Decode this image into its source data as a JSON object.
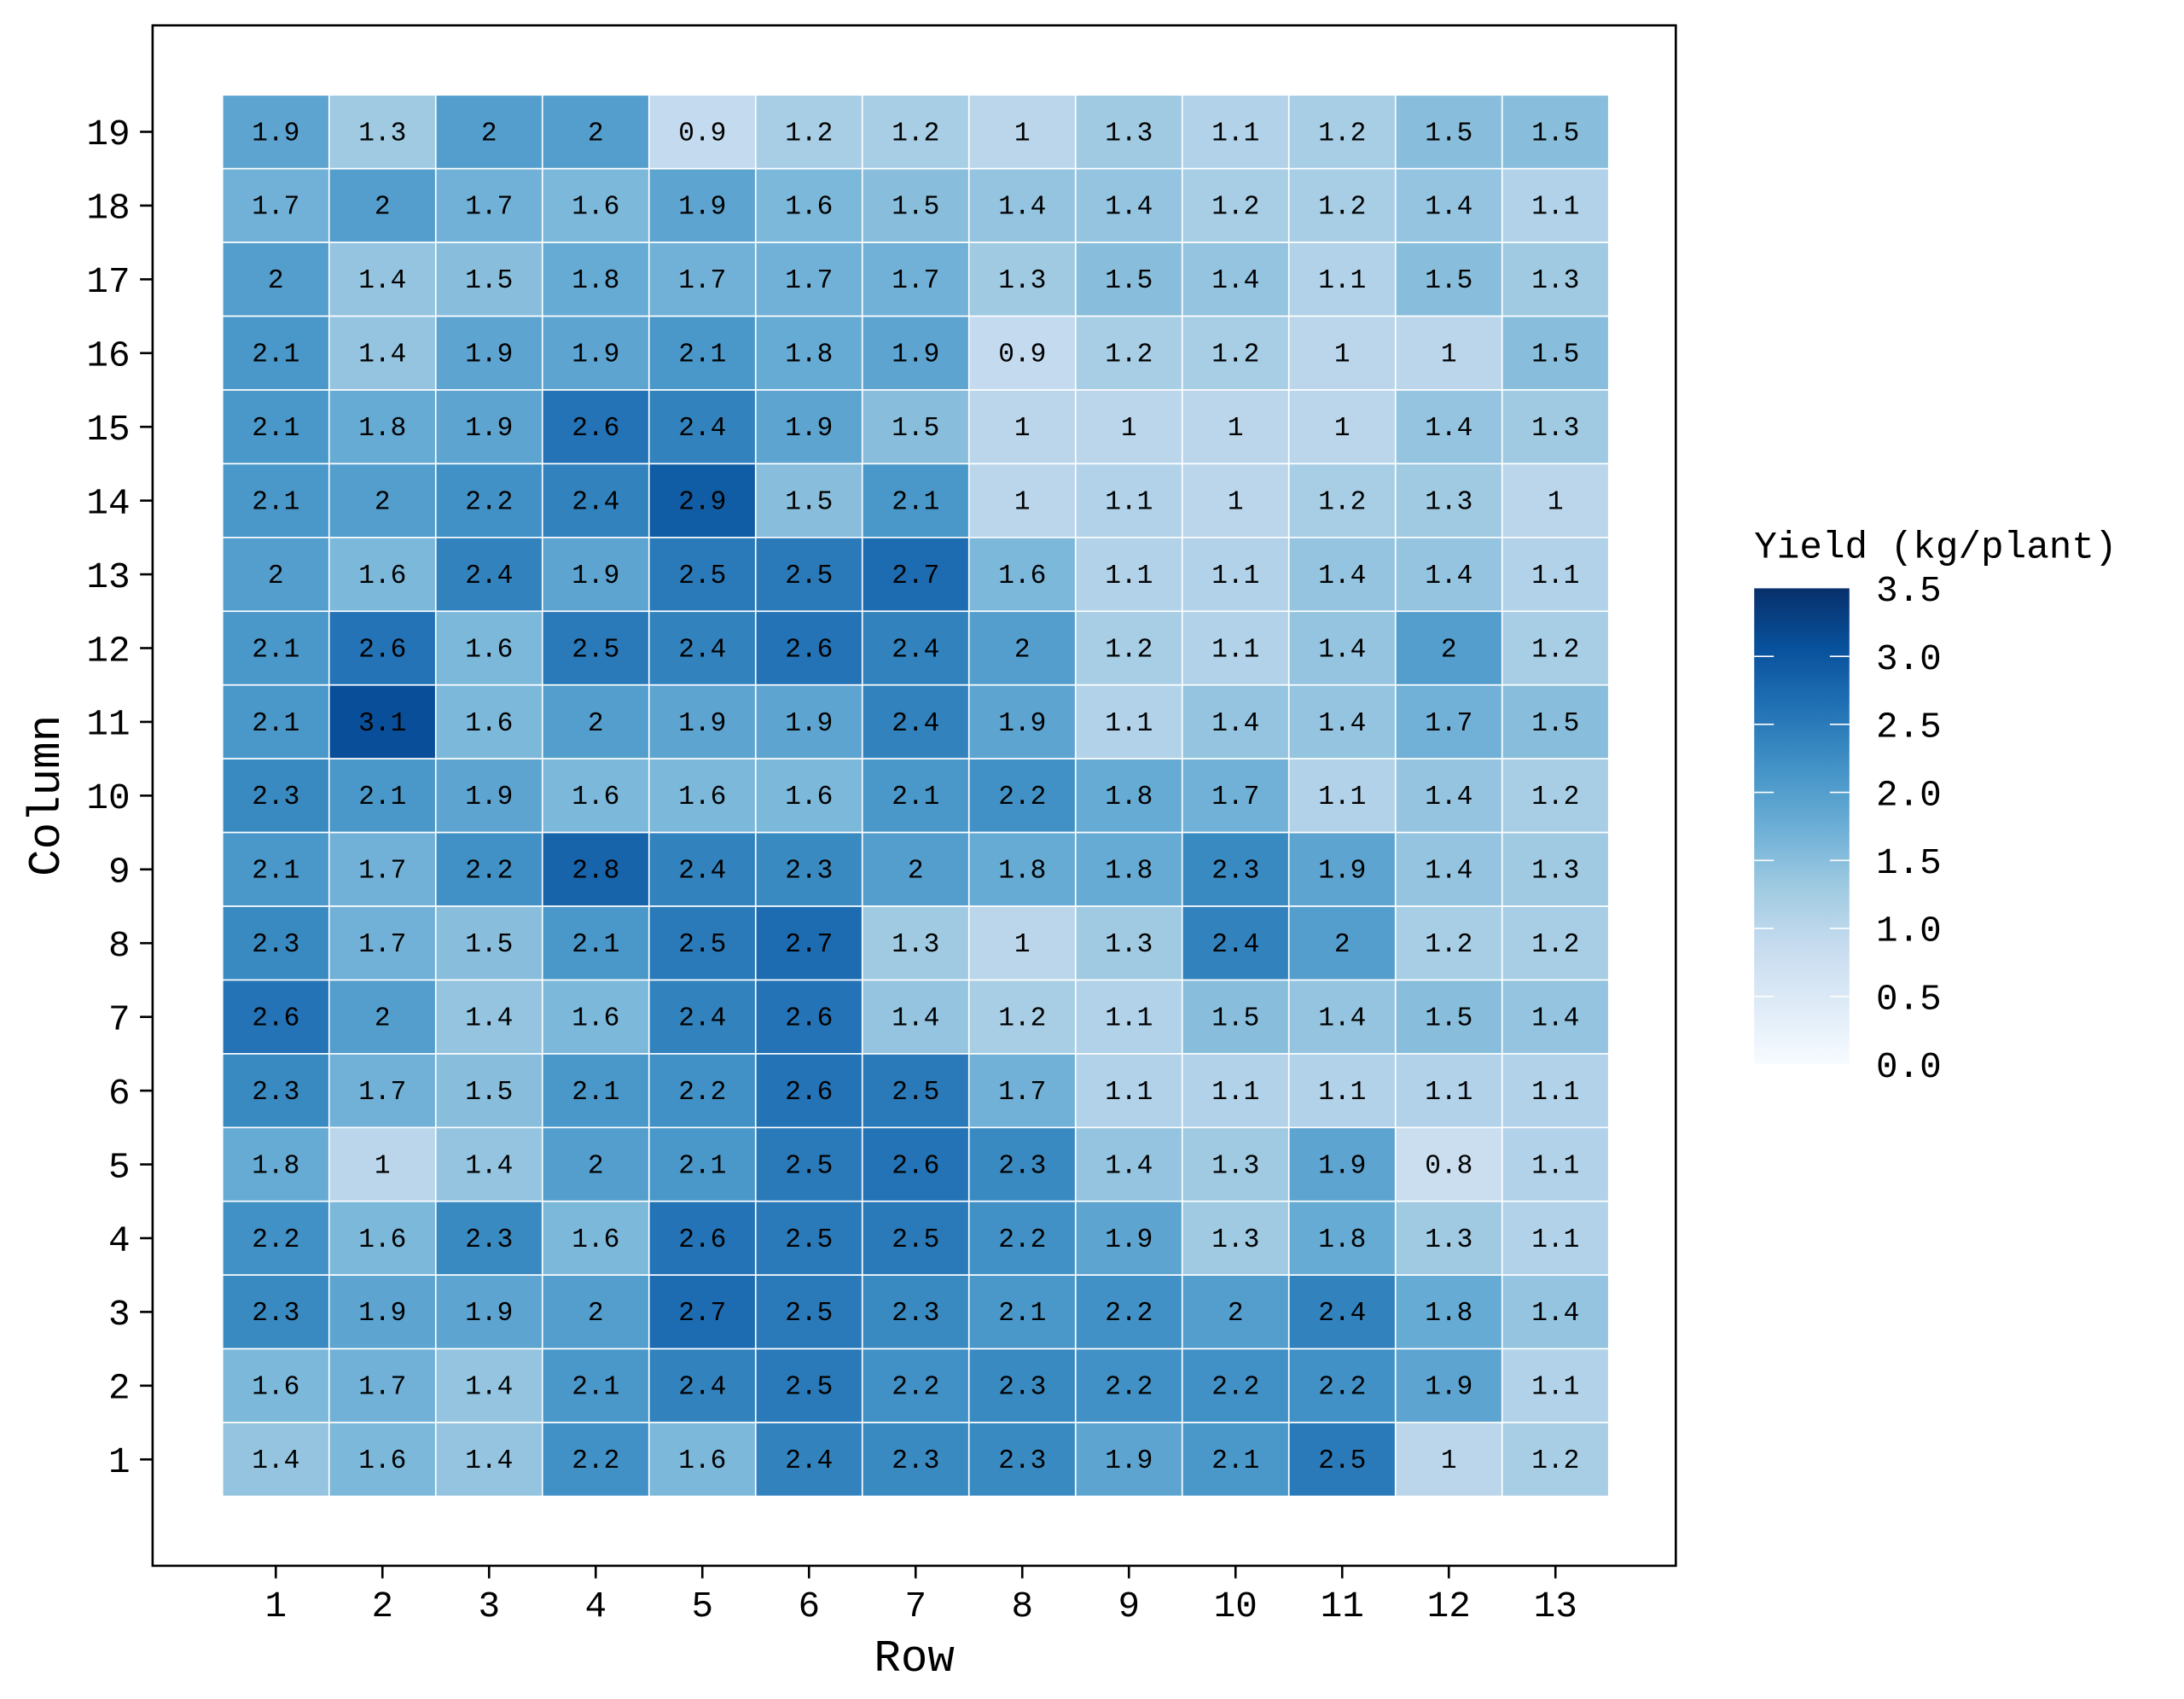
{
  "chart_data": {
    "type": "heatmap",
    "title": "",
    "xlabel": "Row",
    "ylabel": "Column",
    "x_categories": [
      1,
      2,
      3,
      4,
      5,
      6,
      7,
      8,
      9,
      10,
      11,
      12,
      13
    ],
    "y_categories": [
      1,
      2,
      3,
      4,
      5,
      6,
      7,
      8,
      9,
      10,
      11,
      12,
      13,
      14,
      15,
      16,
      17,
      18,
      19
    ],
    "values_by_column_top_to_bottom": [
      {
        "column": 19,
        "values": [
          1.9,
          1.3,
          2,
          2,
          0.9,
          1.2,
          1.2,
          1,
          1.3,
          1.1,
          1.2,
          1.5,
          1.5
        ]
      },
      {
        "column": 18,
        "values": [
          1.7,
          2,
          1.7,
          1.6,
          1.9,
          1.6,
          1.5,
          1.4,
          1.4,
          1.2,
          1.2,
          1.4,
          1.1
        ]
      },
      {
        "column": 17,
        "values": [
          2,
          1.4,
          1.5,
          1.8,
          1.7,
          1.7,
          1.7,
          1.3,
          1.5,
          1.4,
          1.1,
          1.5,
          1.3
        ]
      },
      {
        "column": 16,
        "values": [
          2.1,
          1.4,
          1.9,
          1.9,
          2.1,
          1.8,
          1.9,
          0.9,
          1.2,
          1.2,
          1,
          1,
          1.5
        ]
      },
      {
        "column": 15,
        "values": [
          2.1,
          1.8,
          1.9,
          2.6,
          2.4,
          1.9,
          1.5,
          1,
          1,
          1,
          1,
          1.4,
          1.3
        ]
      },
      {
        "column": 14,
        "values": [
          2.1,
          2,
          2.2,
          2.4,
          2.9,
          1.5,
          2.1,
          1,
          1.1,
          1,
          1.2,
          1.3,
          1
        ]
      },
      {
        "column": 13,
        "values": [
          2,
          1.6,
          2.4,
          1.9,
          2.5,
          2.5,
          2.7,
          1.6,
          1.1,
          1.1,
          1.4,
          1.4,
          1.1
        ]
      },
      {
        "column": 12,
        "values": [
          2.1,
          2.6,
          1.6,
          2.5,
          2.4,
          2.6,
          2.4,
          2,
          1.2,
          1.1,
          1.4,
          2,
          1.2
        ]
      },
      {
        "column": 11,
        "values": [
          2.1,
          3.1,
          1.6,
          2,
          1.9,
          1.9,
          2.4,
          1.9,
          1.1,
          1.4,
          1.4,
          1.7,
          1.5
        ]
      },
      {
        "column": 10,
        "values": [
          2.3,
          2.1,
          1.9,
          1.6,
          1.6,
          1.6,
          2.1,
          2.2,
          1.8,
          1.7,
          1.1,
          1.4,
          1.2
        ]
      },
      {
        "column": 9,
        "values": [
          2.1,
          1.7,
          2.2,
          2.8,
          2.4,
          2.3,
          2,
          1.8,
          1.8,
          2.3,
          1.9,
          1.4,
          1.3
        ]
      },
      {
        "column": 8,
        "values": [
          2.3,
          1.7,
          1.5,
          2.1,
          2.5,
          2.7,
          1.3,
          1,
          1.3,
          2.4,
          2,
          1.2,
          1.2
        ]
      },
      {
        "column": 7,
        "values": [
          2.6,
          2,
          1.4,
          1.6,
          2.4,
          2.6,
          1.4,
          1.2,
          1.1,
          1.5,
          1.4,
          1.5,
          1.4
        ]
      },
      {
        "column": 6,
        "values": [
          2.3,
          1.7,
          1.5,
          2.1,
          2.2,
          2.6,
          2.5,
          1.7,
          1.1,
          1.1,
          1.1,
          1.1,
          1.1
        ]
      },
      {
        "column": 5,
        "values": [
          1.8,
          1,
          1.4,
          2,
          2.1,
          2.5,
          2.6,
          2.3,
          1.4,
          1.3,
          1.9,
          0.8,
          1.1
        ]
      },
      {
        "column": 4,
        "values": [
          2.2,
          1.6,
          2.3,
          1.6,
          2.6,
          2.5,
          2.5,
          2.2,
          1.9,
          1.3,
          1.8,
          1.3,
          1.1
        ]
      },
      {
        "column": 3,
        "values": [
          2.3,
          1.9,
          1.9,
          2,
          2.7,
          2.5,
          2.3,
          2.1,
          2.2,
          2,
          2.4,
          1.8,
          1.4
        ]
      },
      {
        "column": 2,
        "values": [
          1.6,
          1.7,
          1.4,
          2.1,
          2.4,
          2.5,
          2.2,
          2.3,
          2.2,
          2.2,
          2.2,
          1.9,
          1.1
        ]
      },
      {
        "column": 1,
        "values": [
          1.4,
          1.6,
          1.4,
          2.2,
          1.6,
          2.4,
          2.3,
          2.3,
          1.9,
          2.1,
          2.5,
          1,
          1.2
        ]
      }
    ],
    "legend": {
      "title": "Yield (kg/plant)",
      "placement": "right",
      "range": [
        0,
        3.5
      ],
      "ticks": [
        "0.0",
        "0.5",
        "1.0",
        "1.5",
        "2.0",
        "2.5",
        "3.0",
        "3.5"
      ],
      "colormap": [
        "#f7fbff",
        "#deebf7",
        "#c6dbef",
        "#9ecae1",
        "#6baed6",
        "#4292c6",
        "#2171b5",
        "#08519c",
        "#08306b"
      ]
    },
    "grid": false
  }
}
